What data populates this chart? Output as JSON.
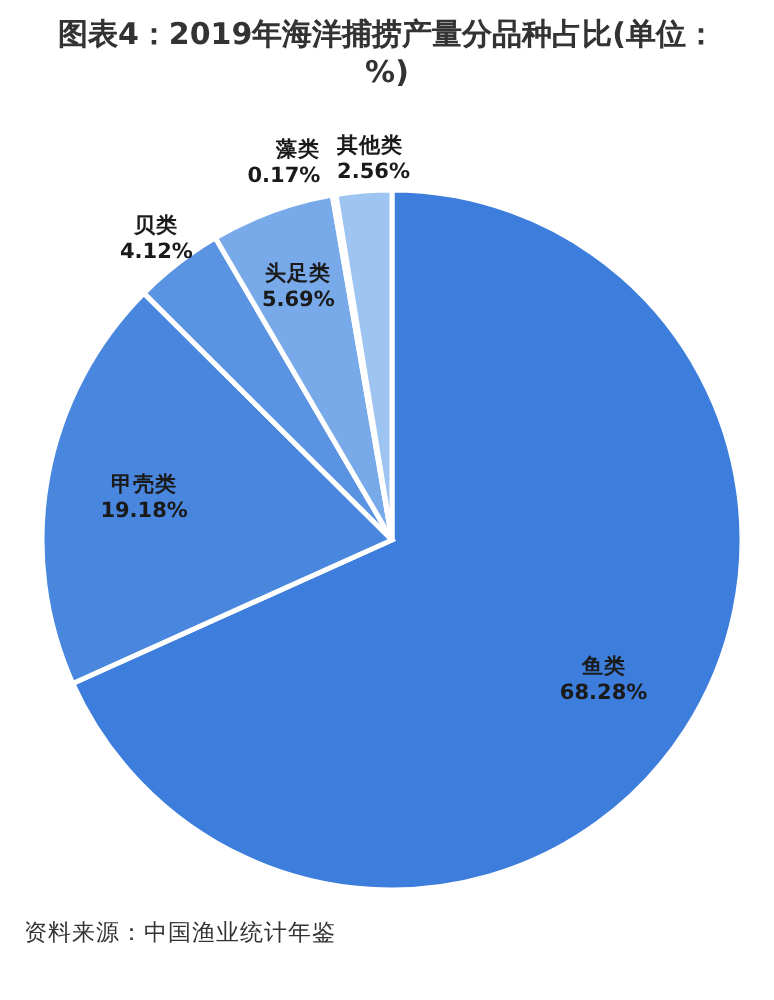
{
  "chart_data": {
    "type": "pie",
    "title": "图表4：2019年海洋捕捞产量分品种占比(单位：%)",
    "categories": [
      "鱼类",
      "甲壳类",
      "贝类",
      "头足类",
      "藻类",
      "其他类"
    ],
    "values": [
      68.28,
      19.18,
      4.12,
      5.69,
      0.17,
      2.56
    ],
    "colors": [
      "#3d7ddb",
      "#4987de",
      "#5a93e2",
      "#78aaea",
      "#8db8ee",
      "#9ec4f1"
    ],
    "value_labels": [
      "68.28%",
      "19.18%",
      "4.12%",
      "5.69%",
      "0.17%",
      "2.56%"
    ],
    "annotations": [
      "资料来源：中国渔业统计年鉴"
    ]
  }
}
